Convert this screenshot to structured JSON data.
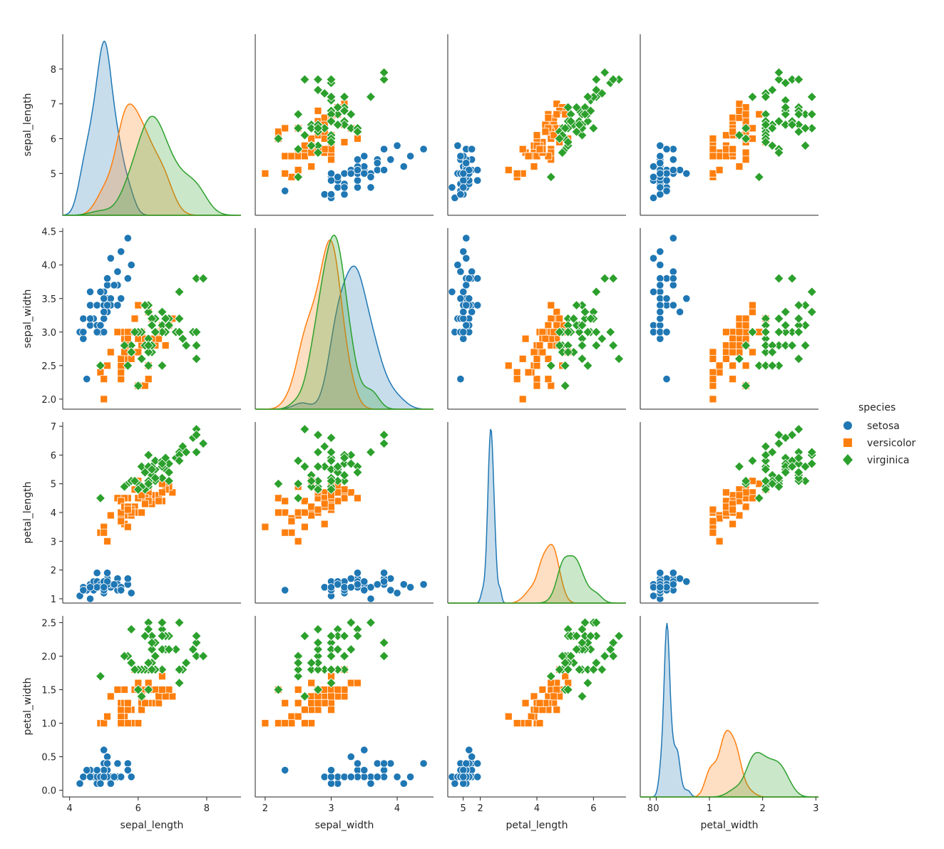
{
  "chart_data": {
    "type": "scatter",
    "subtype": "pairplot",
    "variables": [
      "sepal_length",
      "sepal_width",
      "petal_length",
      "petal_width"
    ],
    "axis_labels": {
      "sepal_length": "sepal_length",
      "sepal_width": "sepal_width",
      "petal_length": "petal_length",
      "petal_width": "petal_width"
    },
    "axis_ranges": {
      "sepal_length": [
        3.8,
        9.0
      ],
      "sepal_width": [
        1.85,
        4.55
      ],
      "petal_length": [
        0.85,
        7.15
      ],
      "petal_width": [
        -0.1,
        2.6
      ]
    },
    "kde_ranges": {
      "sepal_length": [
        3.8,
        9.0
      ],
      "sepal_width": [
        1.3,
        5.1
      ],
      "petal_length": [
        -0.7,
        8.2
      ],
      "petal_width": [
        -0.3,
        3.05
      ]
    },
    "ticks": {
      "sepal_length": [
        "4",
        "6",
        "8"
      ],
      "sepal_width": [
        "2",
        "3",
        "4",
        "5"
      ],
      "petal_length": [
        "2",
        "4",
        "6",
        "8"
      ],
      "petal_width": [
        "0",
        "1",
        "2",
        "3"
      ]
    },
    "yticks": {
      "sepal_length": [
        "5",
        "6",
        "7",
        "8"
      ],
      "sepal_width": [
        "2.0",
        "2.5",
        "3.0",
        "3.5",
        "4.0",
        "4.5"
      ],
      "petal_length": [
        "1",
        "2",
        "3",
        "4",
        "5",
        "6",
        "7"
      ],
      "petal_width": [
        "0.0",
        "0.5",
        "1.0",
        "1.5",
        "2.0",
        "2.5"
      ]
    },
    "legend": {
      "title": "species",
      "position": "right",
      "entries": [
        "setosa",
        "versicolor",
        "virginica"
      ]
    },
    "colors": {
      "setosa": "#1f77b4",
      "versicolor": "#ff7f0e",
      "virginica": "#2ca02c"
    },
    "series": [
      {
        "name": "setosa",
        "marker": "circle",
        "points": [
          [
            5.1,
            3.5,
            1.4,
            0.2
          ],
          [
            4.9,
            3.0,
            1.4,
            0.2
          ],
          [
            4.7,
            3.2,
            1.3,
            0.2
          ],
          [
            4.6,
            3.1,
            1.5,
            0.2
          ],
          [
            5.0,
            3.6,
            1.4,
            0.2
          ],
          [
            5.4,
            3.9,
            1.7,
            0.4
          ],
          [
            4.6,
            3.4,
            1.4,
            0.3
          ],
          [
            5.0,
            3.4,
            1.5,
            0.2
          ],
          [
            4.4,
            2.9,
            1.4,
            0.2
          ],
          [
            4.9,
            3.1,
            1.5,
            0.1
          ],
          [
            5.4,
            3.7,
            1.5,
            0.2
          ],
          [
            4.8,
            3.4,
            1.6,
            0.2
          ],
          [
            4.8,
            3.0,
            1.4,
            0.1
          ],
          [
            4.3,
            3.0,
            1.1,
            0.1
          ],
          [
            5.8,
            4.0,
            1.2,
            0.2
          ],
          [
            5.7,
            4.4,
            1.5,
            0.4
          ],
          [
            5.4,
            3.9,
            1.3,
            0.4
          ],
          [
            5.1,
            3.5,
            1.4,
            0.3
          ],
          [
            5.7,
            3.8,
            1.7,
            0.3
          ],
          [
            5.1,
            3.8,
            1.5,
            0.3
          ],
          [
            5.4,
            3.4,
            1.7,
            0.2
          ],
          [
            5.1,
            3.7,
            1.5,
            0.4
          ],
          [
            4.6,
            3.6,
            1.0,
            0.2
          ],
          [
            5.1,
            3.3,
            1.7,
            0.5
          ],
          [
            4.8,
            3.4,
            1.9,
            0.2
          ],
          [
            5.0,
            3.0,
            1.6,
            0.2
          ],
          [
            5.0,
            3.4,
            1.6,
            0.4
          ],
          [
            5.2,
            3.5,
            1.5,
            0.2
          ],
          [
            5.2,
            3.4,
            1.4,
            0.2
          ],
          [
            4.7,
            3.2,
            1.6,
            0.2
          ],
          [
            4.8,
            3.1,
            1.6,
            0.2
          ],
          [
            5.4,
            3.4,
            1.5,
            0.4
          ],
          [
            5.2,
            4.1,
            1.5,
            0.1
          ],
          [
            5.5,
            4.2,
            1.4,
            0.2
          ],
          [
            4.9,
            3.1,
            1.5,
            0.2
          ],
          [
            5.0,
            3.2,
            1.2,
            0.2
          ],
          [
            5.5,
            3.5,
            1.3,
            0.2
          ],
          [
            4.9,
            3.6,
            1.4,
            0.1
          ],
          [
            4.4,
            3.0,
            1.3,
            0.2
          ],
          [
            5.1,
            3.4,
            1.5,
            0.2
          ],
          [
            5.0,
            3.5,
            1.3,
            0.3
          ],
          [
            4.5,
            2.3,
            1.3,
            0.3
          ],
          [
            4.4,
            3.2,
            1.3,
            0.2
          ],
          [
            5.0,
            3.5,
            1.6,
            0.6
          ],
          [
            5.1,
            3.8,
            1.9,
            0.4
          ],
          [
            4.8,
            3.0,
            1.4,
            0.3
          ],
          [
            5.1,
            3.8,
            1.6,
            0.2
          ],
          [
            4.6,
            3.2,
            1.4,
            0.2
          ],
          [
            5.3,
            3.7,
            1.5,
            0.2
          ],
          [
            5.0,
            3.3,
            1.4,
            0.2
          ]
        ]
      },
      {
        "name": "versicolor",
        "marker": "square",
        "points": [
          [
            7.0,
            3.2,
            4.7,
            1.4
          ],
          [
            6.4,
            3.2,
            4.5,
            1.5
          ],
          [
            6.9,
            3.1,
            4.9,
            1.5
          ],
          [
            5.5,
            2.3,
            4.0,
            1.3
          ],
          [
            6.5,
            2.8,
            4.6,
            1.5
          ],
          [
            5.7,
            2.8,
            4.5,
            1.3
          ],
          [
            6.3,
            3.3,
            4.7,
            1.6
          ],
          [
            4.9,
            2.4,
            3.3,
            1.0
          ],
          [
            6.6,
            2.9,
            4.6,
            1.3
          ],
          [
            5.2,
            2.7,
            3.9,
            1.4
          ],
          [
            5.0,
            2.0,
            3.5,
            1.0
          ],
          [
            5.9,
            3.0,
            4.2,
            1.5
          ],
          [
            6.0,
            2.2,
            4.0,
            1.0
          ],
          [
            6.1,
            2.9,
            4.7,
            1.4
          ],
          [
            5.6,
            2.9,
            3.6,
            1.3
          ],
          [
            6.7,
            3.1,
            4.4,
            1.4
          ],
          [
            5.6,
            3.0,
            4.5,
            1.5
          ],
          [
            5.8,
            2.7,
            4.1,
            1.0
          ],
          [
            6.2,
            2.2,
            4.5,
            1.5
          ],
          [
            5.6,
            2.5,
            3.9,
            1.1
          ],
          [
            5.9,
            3.2,
            4.8,
            1.8
          ],
          [
            6.1,
            2.8,
            4.0,
            1.3
          ],
          [
            6.3,
            2.5,
            4.9,
            1.5
          ],
          [
            6.1,
            2.8,
            4.7,
            1.2
          ],
          [
            6.4,
            2.9,
            4.3,
            1.3
          ],
          [
            6.6,
            3.0,
            4.4,
            1.4
          ],
          [
            6.8,
            2.8,
            4.8,
            1.4
          ],
          [
            6.7,
            3.0,
            5.0,
            1.7
          ],
          [
            6.0,
            2.9,
            4.5,
            1.5
          ],
          [
            5.7,
            2.6,
            3.5,
            1.0
          ],
          [
            5.5,
            2.4,
            3.8,
            1.1
          ],
          [
            5.5,
            2.4,
            3.7,
            1.0
          ],
          [
            5.8,
            2.7,
            3.9,
            1.2
          ],
          [
            6.0,
            2.7,
            5.1,
            1.6
          ],
          [
            5.4,
            3.0,
            4.5,
            1.5
          ],
          [
            6.0,
            3.4,
            4.5,
            1.6
          ],
          [
            6.7,
            3.1,
            4.7,
            1.5
          ],
          [
            6.3,
            2.3,
            4.4,
            1.3
          ],
          [
            5.6,
            3.0,
            4.1,
            1.3
          ],
          [
            5.5,
            2.5,
            4.0,
            1.3
          ],
          [
            5.5,
            2.6,
            4.4,
            1.2
          ],
          [
            6.1,
            3.0,
            4.6,
            1.4
          ],
          [
            5.8,
            2.6,
            4.0,
            1.2
          ],
          [
            5.0,
            2.3,
            3.3,
            1.0
          ],
          [
            5.6,
            2.7,
            4.2,
            1.3
          ],
          [
            5.7,
            3.0,
            4.2,
            1.2
          ],
          [
            5.7,
            2.9,
            4.2,
            1.3
          ],
          [
            6.2,
            2.9,
            4.3,
            1.3
          ],
          [
            5.1,
            2.5,
            3.0,
            1.1
          ],
          [
            5.7,
            2.8,
            4.1,
            1.3
          ]
        ]
      },
      {
        "name": "virginica",
        "marker": "diamond",
        "points": [
          [
            6.3,
            3.3,
            6.0,
            2.5
          ],
          [
            5.8,
            2.7,
            5.1,
            1.9
          ],
          [
            7.1,
            3.0,
            5.9,
            2.1
          ],
          [
            6.3,
            2.9,
            5.6,
            1.8
          ],
          [
            6.5,
            3.0,
            5.8,
            2.2
          ],
          [
            7.6,
            3.0,
            6.6,
            2.1
          ],
          [
            4.9,
            2.5,
            4.5,
            1.7
          ],
          [
            7.3,
            2.9,
            6.3,
            1.8
          ],
          [
            6.7,
            2.5,
            5.8,
            1.8
          ],
          [
            7.2,
            3.6,
            6.1,
            2.5
          ],
          [
            6.5,
            3.2,
            5.1,
            2.0
          ],
          [
            6.4,
            2.7,
            5.3,
            1.9
          ],
          [
            6.8,
            3.0,
            5.5,
            2.1
          ],
          [
            5.7,
            2.5,
            5.0,
            2.0
          ],
          [
            5.8,
            2.8,
            5.1,
            2.4
          ],
          [
            6.4,
            3.2,
            5.3,
            2.3
          ],
          [
            6.5,
            3.0,
            5.5,
            1.8
          ],
          [
            7.7,
            3.8,
            6.7,
            2.2
          ],
          [
            7.7,
            2.6,
            6.9,
            2.3
          ],
          [
            6.0,
            2.2,
            5.0,
            1.5
          ],
          [
            6.9,
            3.2,
            5.7,
            2.3
          ],
          [
            5.6,
            2.8,
            4.9,
            2.0
          ],
          [
            7.7,
            2.8,
            6.7,
            2.0
          ],
          [
            6.3,
            2.7,
            4.9,
            1.8
          ],
          [
            6.7,
            3.3,
            5.7,
            2.1
          ],
          [
            7.2,
            3.2,
            6.0,
            1.8
          ],
          [
            6.2,
            2.8,
            4.8,
            1.8
          ],
          [
            6.1,
            3.0,
            4.9,
            1.8
          ],
          [
            6.4,
            2.8,
            5.6,
            2.1
          ],
          [
            7.2,
            3.0,
            5.8,
            1.6
          ],
          [
            7.4,
            2.8,
            6.1,
            1.9
          ],
          [
            7.9,
            3.8,
            6.4,
            2.0
          ],
          [
            6.4,
            2.8,
            5.6,
            2.2
          ],
          [
            6.3,
            2.8,
            5.1,
            1.5
          ],
          [
            6.1,
            2.6,
            5.6,
            1.4
          ],
          [
            7.7,
            3.0,
            6.1,
            2.3
          ],
          [
            6.3,
            3.4,
            5.6,
            2.4
          ],
          [
            6.4,
            3.1,
            5.5,
            1.8
          ],
          [
            6.0,
            3.0,
            4.8,
            1.8
          ],
          [
            6.9,
            3.1,
            5.4,
            2.1
          ],
          [
            6.7,
            3.1,
            5.6,
            2.4
          ],
          [
            6.9,
            3.1,
            5.1,
            2.3
          ],
          [
            5.8,
            2.7,
            5.1,
            1.9
          ],
          [
            6.8,
            3.2,
            5.9,
            2.3
          ],
          [
            6.7,
            3.3,
            5.7,
            2.5
          ],
          [
            6.7,
            3.0,
            5.2,
            2.3
          ],
          [
            6.3,
            2.5,
            5.0,
            1.9
          ],
          [
            6.5,
            3.0,
            5.2,
            2.0
          ],
          [
            6.2,
            3.4,
            5.4,
            2.3
          ],
          [
            5.9,
            3.0,
            5.1,
            1.8
          ]
        ]
      }
    ]
  }
}
